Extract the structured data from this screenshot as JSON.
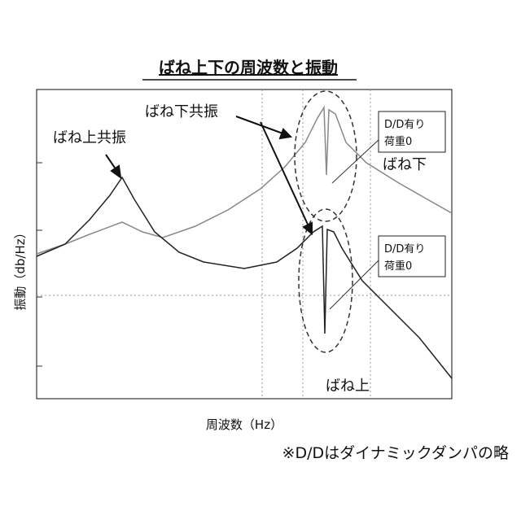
{
  "title": "ばね上下の周波数と振動",
  "y_label": "振動（db/Hz）",
  "x_label": "周波数（Hz）",
  "annotations": {
    "upper_resonance": "ばね上共振",
    "lower_resonance": "ばね下共振",
    "lower_curve": "ばね下",
    "upper_curve": "ばね上"
  },
  "boxes": [
    [
      "D/D有り",
      "荷重0"
    ],
    [
      "D/D有り",
      "荷重0"
    ]
  ],
  "footnote": "※D/Dはダイナミックダンパの略"
}
